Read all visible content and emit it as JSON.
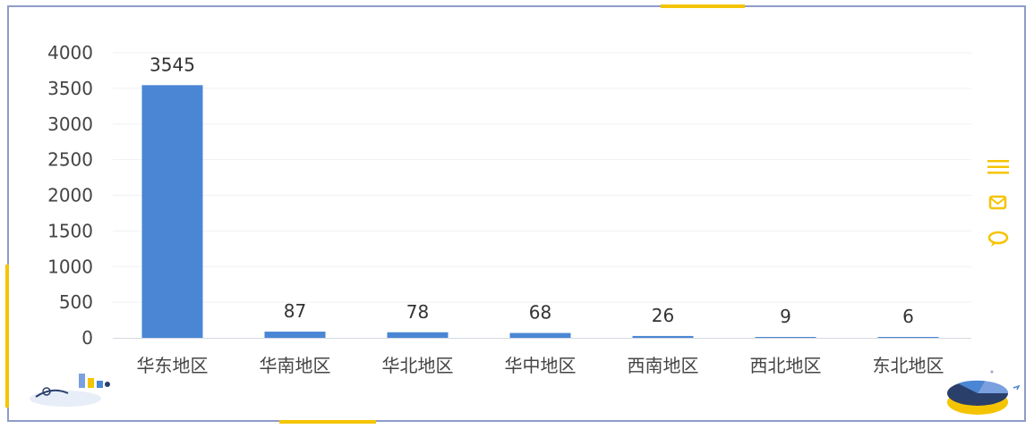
{
  "colors": {
    "bar": "#4a86d4",
    "axis_text": "#444444",
    "label_text": "#333333",
    "grid": "#eef1f5",
    "frame": "#8f9cc9",
    "accent": "#f5c400"
  },
  "icons": [
    "menu-icon",
    "mail-icon",
    "chat-icon"
  ],
  "chart_data": {
    "type": "bar",
    "categories": [
      "华东地区",
      "华南地区",
      "华北地区",
      "华中地区",
      "西南地区",
      "西北地区",
      "东北地区"
    ],
    "values": [
      3545,
      87,
      78,
      68,
      26,
      9,
      6
    ],
    "title": "",
    "xlabel": "",
    "ylabel": "",
    "ylim": [
      0,
      4000
    ],
    "yticks": [
      0,
      500,
      1000,
      1500,
      2000,
      2500,
      3000,
      3500,
      4000
    ],
    "grid": true,
    "data_labels": true
  }
}
